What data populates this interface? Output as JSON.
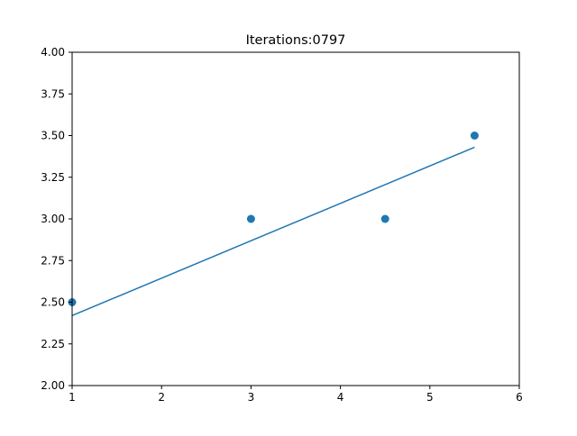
{
  "chart_data": {
    "type": "scatter",
    "title": "Iterations:0797",
    "xlabel": "",
    "ylabel": "",
    "xlim": [
      1,
      6
    ],
    "ylim": [
      2.0,
      4.0
    ],
    "xticks": [
      1,
      2,
      3,
      4,
      5,
      6
    ],
    "xtick_labels": [
      "1",
      "2",
      "3",
      "4",
      "5",
      "6"
    ],
    "yticks": [
      2.0,
      2.25,
      2.5,
      2.75,
      3.0,
      3.25,
      3.5,
      3.75,
      4.0
    ],
    "ytick_labels": [
      "2.00",
      "2.25",
      "2.50",
      "2.75",
      "3.00",
      "3.25",
      "3.50",
      "3.75",
      "4.00"
    ],
    "grid": false,
    "color": "#1f77b4",
    "series": [
      {
        "type": "scatter",
        "x": [
          1,
          3,
          4.5,
          5.5
        ],
        "y": [
          2.5,
          3.0,
          3.0,
          3.5
        ]
      },
      {
        "type": "line",
        "x": [
          1,
          5.5
        ],
        "y": [
          2.42,
          3.43
        ]
      }
    ]
  }
}
